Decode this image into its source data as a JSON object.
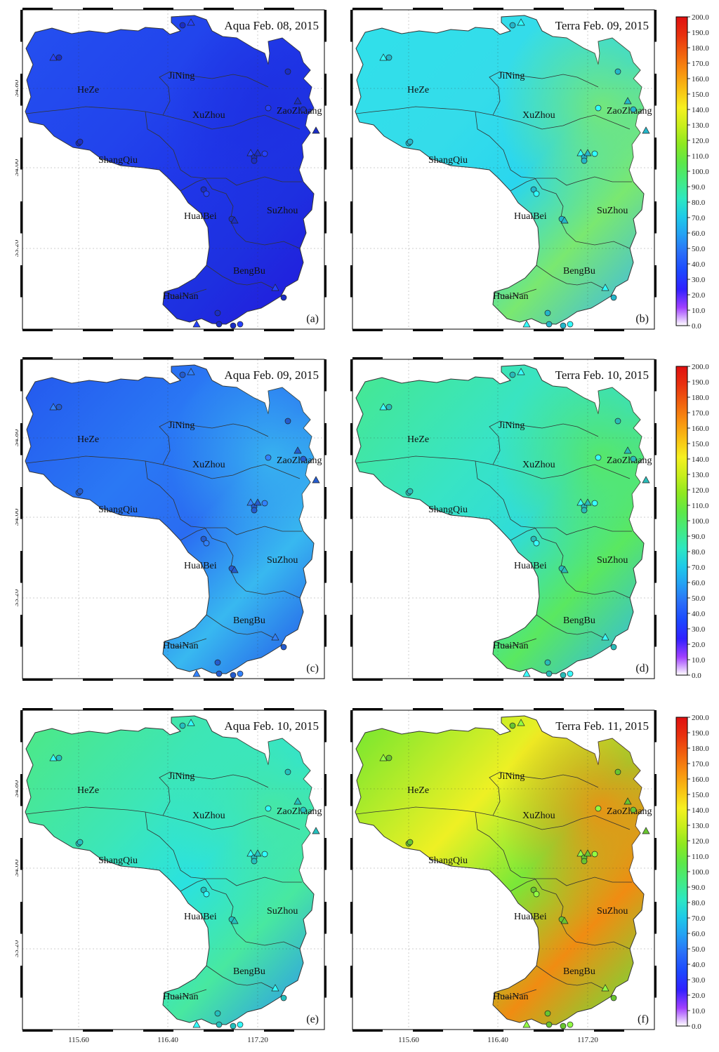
{
  "x_ticks": [
    "115.60",
    "116.40",
    "117.20"
  ],
  "y_ticks": [
    "34.80",
    "34.00",
    "33.20"
  ],
  "colorbar_ticks": [
    "0.0",
    "10.0",
    "20.0",
    "30.0",
    "40.0",
    "50.0",
    "60.0",
    "70.0",
    "80.0",
    "90.0",
    "100.0",
    "110.0",
    "120.0",
    "130.0",
    "140.0",
    "150.0",
    "160.0",
    "170.0",
    "180.0",
    "190.0",
    "200.0"
  ],
  "colorbar_colors": [
    "#ffffff",
    "#a040ff",
    "#3020ff",
    "#1c48ff",
    "#2a6ef8",
    "#24a0f4",
    "#1ecae8",
    "#2ee8c0",
    "#44ea80",
    "#5ee848",
    "#8ee820",
    "#c8ee1c",
    "#f6f020",
    "#f8c014",
    "#f89010",
    "#f0600e",
    "#e8300e",
    "#e01010"
  ],
  "panels": [
    {
      "id": "a",
      "title": "Aqua Feb. 08, 2015",
      "label": "(a)",
      "regions": [
        "HeZe",
        "JiNing",
        "XuZhou",
        "ZaoZhuang",
        "ShangQiu",
        "HuaiBei",
        "SuZhou",
        "BengBu",
        "HuaiNan"
      ]
    },
    {
      "id": "b",
      "title": "Terra Feb. 09, 2015",
      "label": "(b)",
      "regions": [
        "HeZe",
        "JiNing",
        "XuZhou",
        "ZaoZhuang",
        "ShangQiu",
        "HuaiBei",
        "SuZhou",
        "BengBu",
        "HuaiNan"
      ]
    },
    {
      "id": "c",
      "title": "Aqua Feb. 09, 2015",
      "label": "(c)",
      "regions": [
        "HeZe",
        "JiNing",
        "XuZhou",
        "ZaoZhuang",
        "ShangQiu",
        "HuaiBei",
        "SuZhou",
        "BengBu",
        "HuaiNan"
      ]
    },
    {
      "id": "d",
      "title": "Terra Feb. 10, 2015",
      "label": "(d)",
      "regions": [
        "HeZe",
        "JiNing",
        "XuZhou",
        "ZaoZhuang",
        "ShangQiu",
        "HuaiBei",
        "SuZhou",
        "BengBu",
        "HuaiNan"
      ]
    },
    {
      "id": "e",
      "title": "Aqua Feb. 10, 2015",
      "label": "(e)",
      "regions": [
        "HeZe",
        "JiNing",
        "XuZhou",
        "ZaoZhuang",
        "ShangQiu",
        "HuaiBei",
        "SuZhou",
        "BengBu",
        "HuaiNan"
      ]
    },
    {
      "id": "f",
      "title": "Terra Feb. 11, 2015",
      "label": "(f)",
      "regions": [
        "HeZe",
        "JiNing",
        "XuZhou",
        "ZaoZhuang",
        "ShangQiu",
        "HuaiBei",
        "SuZhou",
        "BengBu",
        "HuaiNan"
      ]
    }
  ],
  "fills": {
    "a": {
      "base": "#1f36e8",
      "west": "#2450f0",
      "north": "#2244ec",
      "east": "#1e30e0",
      "south": "#2218dc"
    },
    "b": {
      "base": "#2ad6ee",
      "west": "#30e0ea",
      "north": "#34dcea",
      "east": "#7ae870",
      "south": "#38b4f2"
    },
    "c": {
      "base": "#2a6cf2",
      "west": "#2458ee",
      "north": "#2a78f4",
      "east": "#38b8f0",
      "south": "#2250e8"
    },
    "d": {
      "base": "#30dcd8",
      "west": "#46e890",
      "north": "#38e4c4",
      "east": "#5ae860",
      "south": "#30b4f0"
    },
    "e": {
      "base": "#2ae2e0",
      "west": "#4ee884",
      "north": "#3ce6b8",
      "east": "#48e8a0",
      "south": "#2a90f2"
    },
    "f": {
      "base": "#7ae838",
      "west": "#70e630",
      "north": "#eef024",
      "east": "#f08c12",
      "south": "#5ee840"
    }
  }
}
